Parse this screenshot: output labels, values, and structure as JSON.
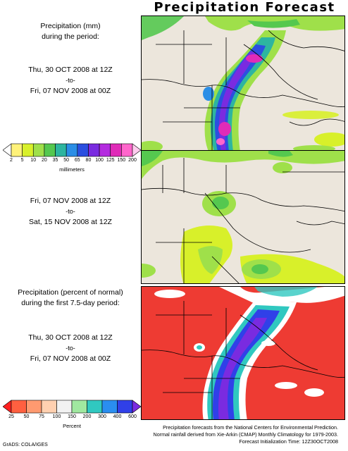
{
  "title": "Precipitation Forecast",
  "panel1": {
    "heading_line1": "Precipitation (mm)",
    "heading_line2": "during the period:",
    "start": "Thu, 30 OCT 2008 at 12Z",
    "to": "-to-",
    "end": "Fri, 07 NOV 2008 at 00Z"
  },
  "precip_colorbar": {
    "ticks": [
      "2",
      "5",
      "10",
      "20",
      "35",
      "50",
      "65",
      "80",
      "100",
      "125",
      "150",
      "200"
    ],
    "units": "millimeters",
    "colors": [
      "#ffffff",
      "#fff27a",
      "#d8f02a",
      "#9fe04a",
      "#55c84f",
      "#2db5a0",
      "#2b8ee6",
      "#2b4fe0",
      "#7a2be0",
      "#b42be0",
      "#e02bb8",
      "#ff66cc",
      "#ffccee"
    ]
  },
  "panel2": {
    "start": "Fri, 07 NOV 2008 at 12Z",
    "to": "-to-",
    "end": "Sat, 15 NOV 2008 at 12Z"
  },
  "panel3": {
    "heading_line1": "Precipitation (percent of normal)",
    "heading_line2": "during the first 7.5-day period:",
    "start": "Thu, 30 OCT 2008 at 12Z",
    "to": "-to-",
    "end": "Fri, 07 NOV 2008 at 00Z"
  },
  "percent_colorbar": {
    "ticks": [
      "25",
      "50",
      "75",
      "100",
      "150",
      "200",
      "300",
      "400",
      "600"
    ],
    "units": "Percent",
    "colors": [
      "#ff2020",
      "#ff6040",
      "#ff9a70",
      "#ffd0b0",
      "#f2f2f2",
      "#a0e8a0",
      "#30c8c0",
      "#2a8ef0",
      "#3040e8",
      "#7a2be0"
    ]
  },
  "credits": {
    "line1": "Precipitation forecasts from the National Centers for Environmental Prediction.",
    "line2": "Normal rainfall derived from Xie-Arkin (CMAP) Monthly Climatology for 1979-2003.",
    "line3": "Forecast Initialization Time: 12Z30OCT2008",
    "grads": "GrADS: COLA/IGES"
  },
  "map_colors": {
    "land": "#ece6dc",
    "red_background": "#ee3b33",
    "border": "#000000"
  }
}
